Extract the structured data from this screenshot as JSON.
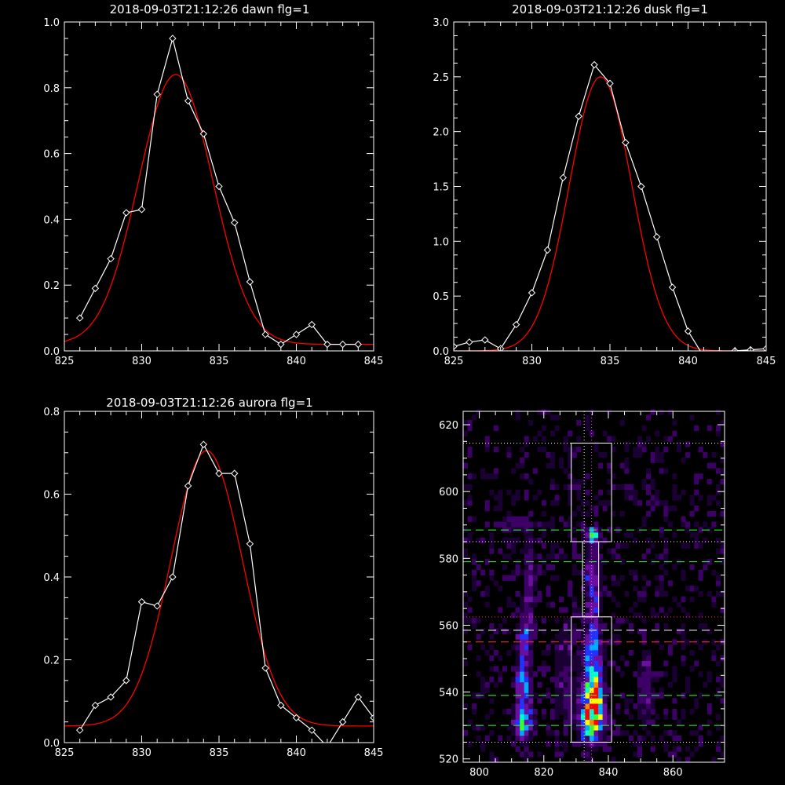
{
  "chart_data": [
    {
      "type": "line",
      "title": "2018-09-03T21:12:26 dawn flg=1",
      "xlim": [
        825,
        845
      ],
      "ylim": [
        0,
        1.0
      ],
      "xticks": [
        "825",
        "830",
        "835",
        "840",
        "845"
      ],
      "yticks": [
        "0.0",
        "0.2",
        "0.4",
        "0.6",
        "0.8",
        "1.0"
      ],
      "series": [
        {
          "color": "#ffffff",
          "marker": "diamond",
          "x": [
            826,
            827,
            828,
            829,
            830,
            831,
            832,
            833,
            834,
            835,
            836,
            837,
            838,
            839,
            840,
            841,
            842,
            843,
            844
          ],
          "y": [
            0.1,
            0.19,
            0.28,
            0.42,
            0.43,
            0.78,
            0.95,
            0.76,
            0.66,
            0.5,
            0.39,
            0.21,
            0.05,
            0.02,
            0.05,
            0.08,
            0.02,
            0.02,
            0.02
          ]
        },
        {
          "color": "#ff0000",
          "fit": "gaussian",
          "amplitude": 0.82,
          "center": 832.2,
          "sigma": 2.4,
          "offset": 0.02
        }
      ]
    },
    {
      "type": "line",
      "title": "2018-09-03T21:12:26 dusk flg=1",
      "xlim": [
        825,
        845
      ],
      "ylim": [
        0,
        3.0
      ],
      "xticks": [
        "825",
        "830",
        "835",
        "840",
        "845"
      ],
      "yticks": [
        "0.0",
        "0.5",
        "1.0",
        "1.5",
        "2.0",
        "2.5",
        "3.0"
      ],
      "series": [
        {
          "color": "#ffffff",
          "marker": "diamond",
          "x": [
            825,
            826,
            827,
            828,
            829,
            830,
            831,
            832,
            833,
            834,
            835,
            836,
            837,
            838,
            839,
            840,
            841,
            842,
            843,
            844,
            845
          ],
          "y": [
            0.04,
            0.08,
            0.1,
            0.02,
            0.24,
            0.53,
            0.92,
            1.58,
            2.14,
            2.61,
            2.44,
            1.9,
            1.5,
            1.04,
            0.58,
            0.18,
            -0.05,
            -0.05,
            0.0,
            0.01,
            0.02
          ],
          "marker_skip_index": [
            16,
            17
          ]
        },
        {
          "color": "#ff0000",
          "fit": "gaussian",
          "amplitude": 2.5,
          "center": 834.4,
          "sigma": 2.0,
          "offset": 0.0
        }
      ]
    },
    {
      "type": "line",
      "title": "2018-09-03T21:12:26 aurora flg=1",
      "xlim": [
        825,
        845
      ],
      "ylim": [
        0,
        0.8
      ],
      "xticks": [
        "825",
        "830",
        "835",
        "840",
        "845"
      ],
      "yticks": [
        "0.0",
        "0.2",
        "0.4",
        "0.6",
        "0.8"
      ],
      "series": [
        {
          "color": "#ffffff",
          "marker": "diamond",
          "x": [
            826,
            827,
            828,
            829,
            830,
            831,
            832,
            833,
            834,
            835,
            836,
            837,
            838,
            839,
            840,
            841,
            842,
            843,
            844,
            845
          ],
          "y": [
            0.03,
            0.09,
            0.11,
            0.15,
            0.34,
            0.33,
            0.4,
            0.62,
            0.72,
            0.65,
            0.65,
            0.48,
            0.18,
            0.09,
            0.06,
            0.03,
            -0.01,
            0.05,
            0.11,
            0.06
          ],
          "marker_skip_index": [
            16
          ]
        },
        {
          "color": "#ff0000",
          "fit": "gaussian",
          "amplitude": 0.665,
          "center": 834.2,
          "sigma": 2.3,
          "offset": 0.04
        }
      ]
    },
    {
      "type": "heatmap",
      "xlim": [
        795,
        876
      ],
      "ylim": [
        519,
        624
      ],
      "xticks": [
        "800",
        "820",
        "840",
        "860"
      ],
      "yticks": [
        "520",
        "540",
        "560",
        "580",
        "600",
        "620"
      ],
      "colormap": [
        "#1a0033",
        "#3d0066",
        "#6a0fa0",
        "#2233ff",
        "#00aaff",
        "#00ffcc",
        "#33ff33",
        "#ffff00",
        "#ff8800",
        "#ff0000"
      ],
      "background_scatter_intensity": 0.08,
      "sources": [
        {
          "x": 834.5,
          "y": 532,
          "sx": 2.2,
          "sy": 4.5,
          "amp": 0.95
        },
        {
          "x": 834.5,
          "y": 541,
          "sx": 2.0,
          "sy": 3.5,
          "amp": 0.55
        },
        {
          "x": 834.5,
          "y": 551,
          "sx": 1.8,
          "sy": 5.0,
          "amp": 0.42
        },
        {
          "x": 834.5,
          "y": 570,
          "sx": 1.5,
          "sy": 8.0,
          "amp": 0.3
        },
        {
          "x": 834.5,
          "y": 586,
          "sx": 1.6,
          "sy": 1.5,
          "amp": 0.45
        },
        {
          "x": 813.0,
          "y": 530,
          "sx": 1.8,
          "sy": 3.0,
          "amp": 0.55
        },
        {
          "x": 813.0,
          "y": 541,
          "sx": 1.6,
          "sy": 4.5,
          "amp": 0.38
        },
        {
          "x": 813.5,
          "y": 556,
          "sx": 1.6,
          "sy": 6.5,
          "amp": 0.22
        },
        {
          "x": 815.0,
          "y": 576,
          "sx": 1.5,
          "sy": 9.0,
          "amp": 0.14
        },
        {
          "x": 826.0,
          "y": 545,
          "sx": 2.5,
          "sy": 12.0,
          "amp": 0.12
        },
        {
          "x": 851.0,
          "y": 540,
          "sx": 1.6,
          "sy": 10.0,
          "amp": 0.14
        },
        {
          "x": 811.0,
          "y": 589,
          "sx": 2.0,
          "sy": 1.2,
          "amp": 0.16
        }
      ],
      "boxes": [
        {
          "x0": 828.5,
          "x1": 841.0,
          "y0": 525,
          "y1": 562.5,
          "color": "#ffffff"
        },
        {
          "x0": 832.0,
          "x1": 837.0,
          "y0": 562.5,
          "y1": 585,
          "color": "#ffffff"
        },
        {
          "x0": 828.5,
          "x1": 841.0,
          "y0": 585,
          "y1": 614.5,
          "color": "#ffffff"
        }
      ],
      "dotted_hlines": [
        {
          "y": 614.5,
          "color": "#ffffff"
        },
        {
          "y": 585,
          "color": "#ffffff"
        },
        {
          "y": 562.5,
          "color": "#ff3333"
        },
        {
          "y": 525,
          "color": "#ffffff"
        }
      ],
      "dashed_hlines": [
        {
          "y": 588.5,
          "color": "#33ff33"
        },
        {
          "y": 579,
          "color": "#33ff33"
        },
        {
          "y": 558.5,
          "color": "#ffffff"
        },
        {
          "y": 555,
          "color": "#ff3333"
        },
        {
          "y": 539,
          "color": "#33ff33"
        },
        {
          "y": 530,
          "color": "#33ff33"
        }
      ],
      "dotted_vlines": [
        {
          "x": 832.5,
          "color": "#ffffff"
        },
        {
          "x": 834.8,
          "color": "#ff44ff"
        }
      ]
    }
  ]
}
